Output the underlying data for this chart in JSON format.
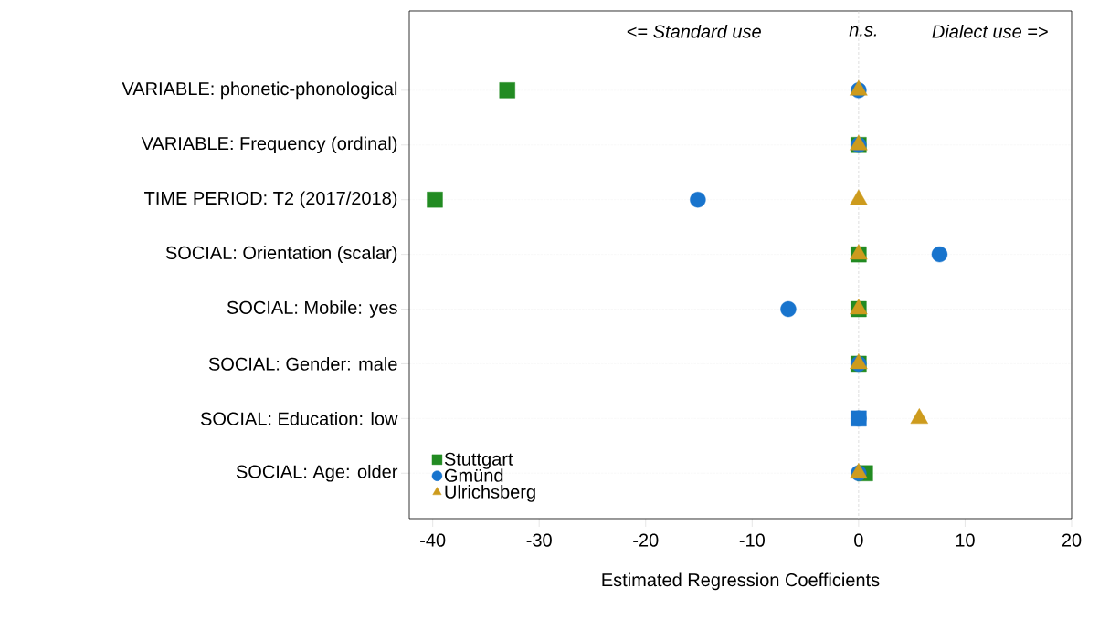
{
  "chart_data": {
    "type": "scatter",
    "orientation": "horizontal",
    "xlabel": "Estimated Regression Coefficients",
    "categories": [
      "VARIABLE: phonetic-phonological",
      "VARIABLE: Frequency (ordinal)",
      "TIME PERIOD: T2 (2017/2018)",
      "SOCIAL: Orientation (scalar)",
      "SOCIAL: Mobile: yes",
      "SOCIAL: Gender: male",
      "SOCIAL: Education: low",
      "SOCIAL: Age: older"
    ],
    "series": [
      {
        "name": "Stuttgart",
        "color": "#228b22",
        "marker": "square",
        "values": [
          -33.0,
          0,
          -39.8,
          0,
          0,
          0,
          0,
          0.6
        ],
        "colors": [
          "#228b22",
          "#228b22",
          "#228b22",
          "#228b22",
          "#228b22",
          "#228b22",
          "#1874cd",
          "#228b22"
        ]
      },
      {
        "name": "Gmünd",
        "color": "#1874cd",
        "marker": "circle",
        "values": [
          0,
          0,
          -15.1,
          7.6,
          -6.6,
          0,
          0,
          0
        ]
      },
      {
        "name": "Ulrichsberg",
        "color": "#cd9b1d",
        "marker": "triangle",
        "values": [
          0,
          0,
          0,
          0,
          0,
          0,
          5.7,
          0
        ]
      }
    ],
    "xlim": [
      -42.2,
      20
    ],
    "xticks": [
      -40,
      -30,
      -20,
      -10,
      0,
      10,
      20
    ],
    "grid": "y",
    "legend": "bottom left",
    "ref_lines": [
      {
        "axis": "x",
        "value": 0,
        "color": "#c8c8c8",
        "line_style": "dashed"
      }
    ],
    "annotations": [
      "<= *Standard use*",
      "*n.s.*",
      "*Dialect use* =>"
    ]
  }
}
